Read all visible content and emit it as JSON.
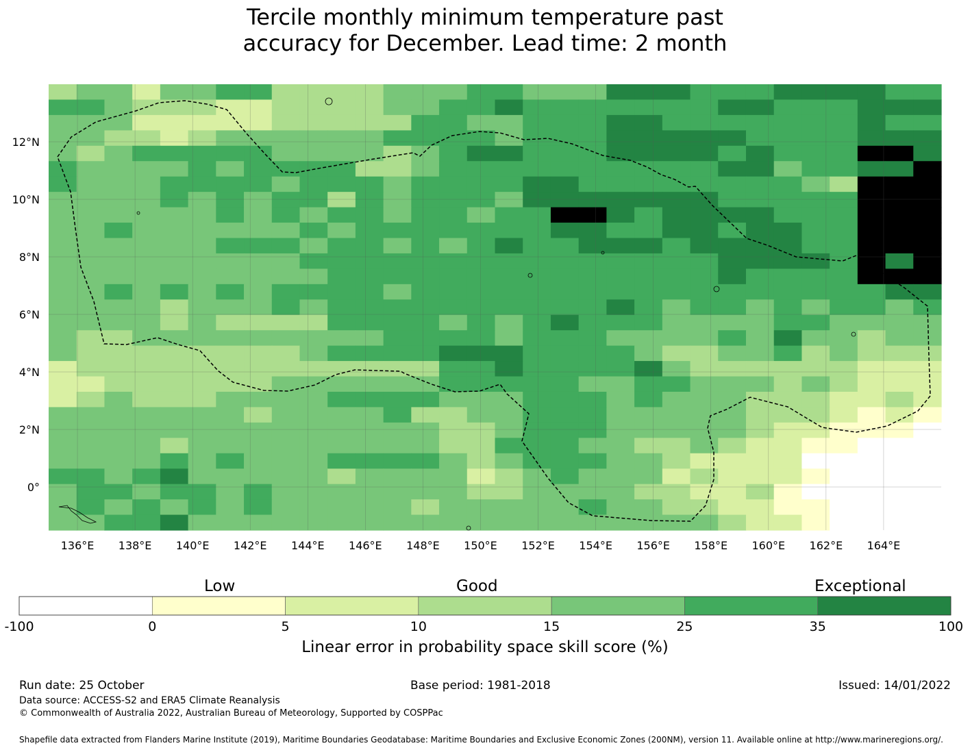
{
  "title_line1": "Tercile monthly minimum temperature past",
  "title_line2": "accuracy for December. Lead time: 2 month",
  "map": {
    "extent": {
      "lon_min": 135,
      "lon_max": 166,
      "lat_min": -1.5,
      "lat_max": 14
    },
    "cell_deg": 0.833,
    "x_ticks": [
      "136°E",
      "138°E",
      "140°E",
      "142°E",
      "144°E",
      "146°E",
      "148°E",
      "150°E",
      "152°E",
      "154°E",
      "156°E",
      "158°E",
      "160°E",
      "162°E",
      "164°E"
    ],
    "y_ticks": [
      "12°N",
      "10°N",
      "8°N",
      "6°N",
      "4°N",
      "2°N",
      "0°"
    ],
    "rows": [
      "34424455333344455444666555666655",
      "55433322333344556555555566555666",
      "44422222333335544555665555555655",
      "44332344444455554555666665555666",
      "43455555444434566555666656555776",
      "54444545555334555555555566455667",
      "54445555455545555665555555543777",
      "44445454553545554666666655555777",
      "44444454545545545577656666555777",
      "44544444454555555566556656655777",
      "44444455545545456556665666655777",
      "44444444455555555555555566665767",
      "44444444445555555555555565555777",
      "44545454555545555555555555555566",
      "44443444545555555555654554545545",
      "44443433335555454565554444554444",
      "43344444444455554555444454644344",
      "43333333345555666555543344534333",
      "23333333333333556555564333333222",
      "22333333444444555554455444343222",
      "23433344445555444555454443332232",
      "44444443444453344555444443332121",
      "44444444444444334555444443221110",
      "44443444444444335554433432211000",
      "44445454445555434555443222200000",
      "55456444443444423454442322210000",
      "45545545444444433444433223100000",
      "45454545444443444445443322110000",
      "44556444444444444444444432210000"
    ]
  },
  "eez_label": "EEZ boundary",
  "colorbar": {
    "colors": [
      "#ffffff",
      "#ffffcc",
      "#d9f0a3",
      "#addd8e",
      "#78c679",
      "#41ab5d",
      "#238443"
    ],
    "tick_labels": [
      "-100",
      "0",
      "5",
      "10",
      "15",
      "25",
      "35",
      "100"
    ],
    "category_labels": [
      "Low",
      "Good",
      "Exceptional"
    ],
    "xlabel": "Linear error in probability space skill score (%)"
  },
  "footer": {
    "run_date": "Run date: 25 October",
    "base_period": "Base period: 1981-2018",
    "issued": "Issued: 14/01/2022",
    "data_source": "Data source: ACCESS-S2 and ERA5 Climate Reanalysis",
    "copyright": "© Commonwealth of Australia 2022, Australian Bureau of Meteorology, Supported by COSPPac",
    "shapefile": "Shapefile data extracted from Flanders Marine Institute (2019), Maritime Boundaries Geodatabase: Maritime Boundaries and Exclusive Economic Zones (200NM), version 11. Available online at http://www.marineregions.org/."
  }
}
